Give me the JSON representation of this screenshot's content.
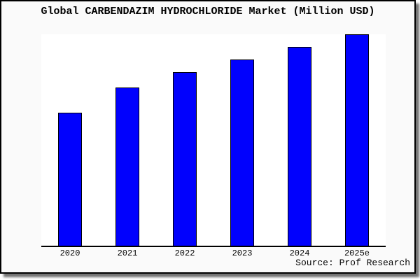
{
  "chart_data": {
    "type": "bar",
    "title": "Global CARBENDAZIM HYDROCHLORIDE Market (Million USD)",
    "categories": [
      "2020",
      "2021",
      "2022",
      "2023",
      "2024",
      "2025e"
    ],
    "values": [
      63,
      75,
      82,
      88,
      94,
      100
    ],
    "units": "relative bar height, percent of tallest (2025e) bar; no numeric y-axis shown in chart",
    "xlabel": "",
    "ylabel": "",
    "ylim": [
      0,
      100
    ],
    "grid": false,
    "legend": null,
    "bar_color": "#0101fd",
    "bar_edge_color": "#000000",
    "plot_background": "#ffffff",
    "source_label": "Source: Prof Research"
  },
  "frame": {
    "background": "#fafafa",
    "border_color": "#000000"
  }
}
